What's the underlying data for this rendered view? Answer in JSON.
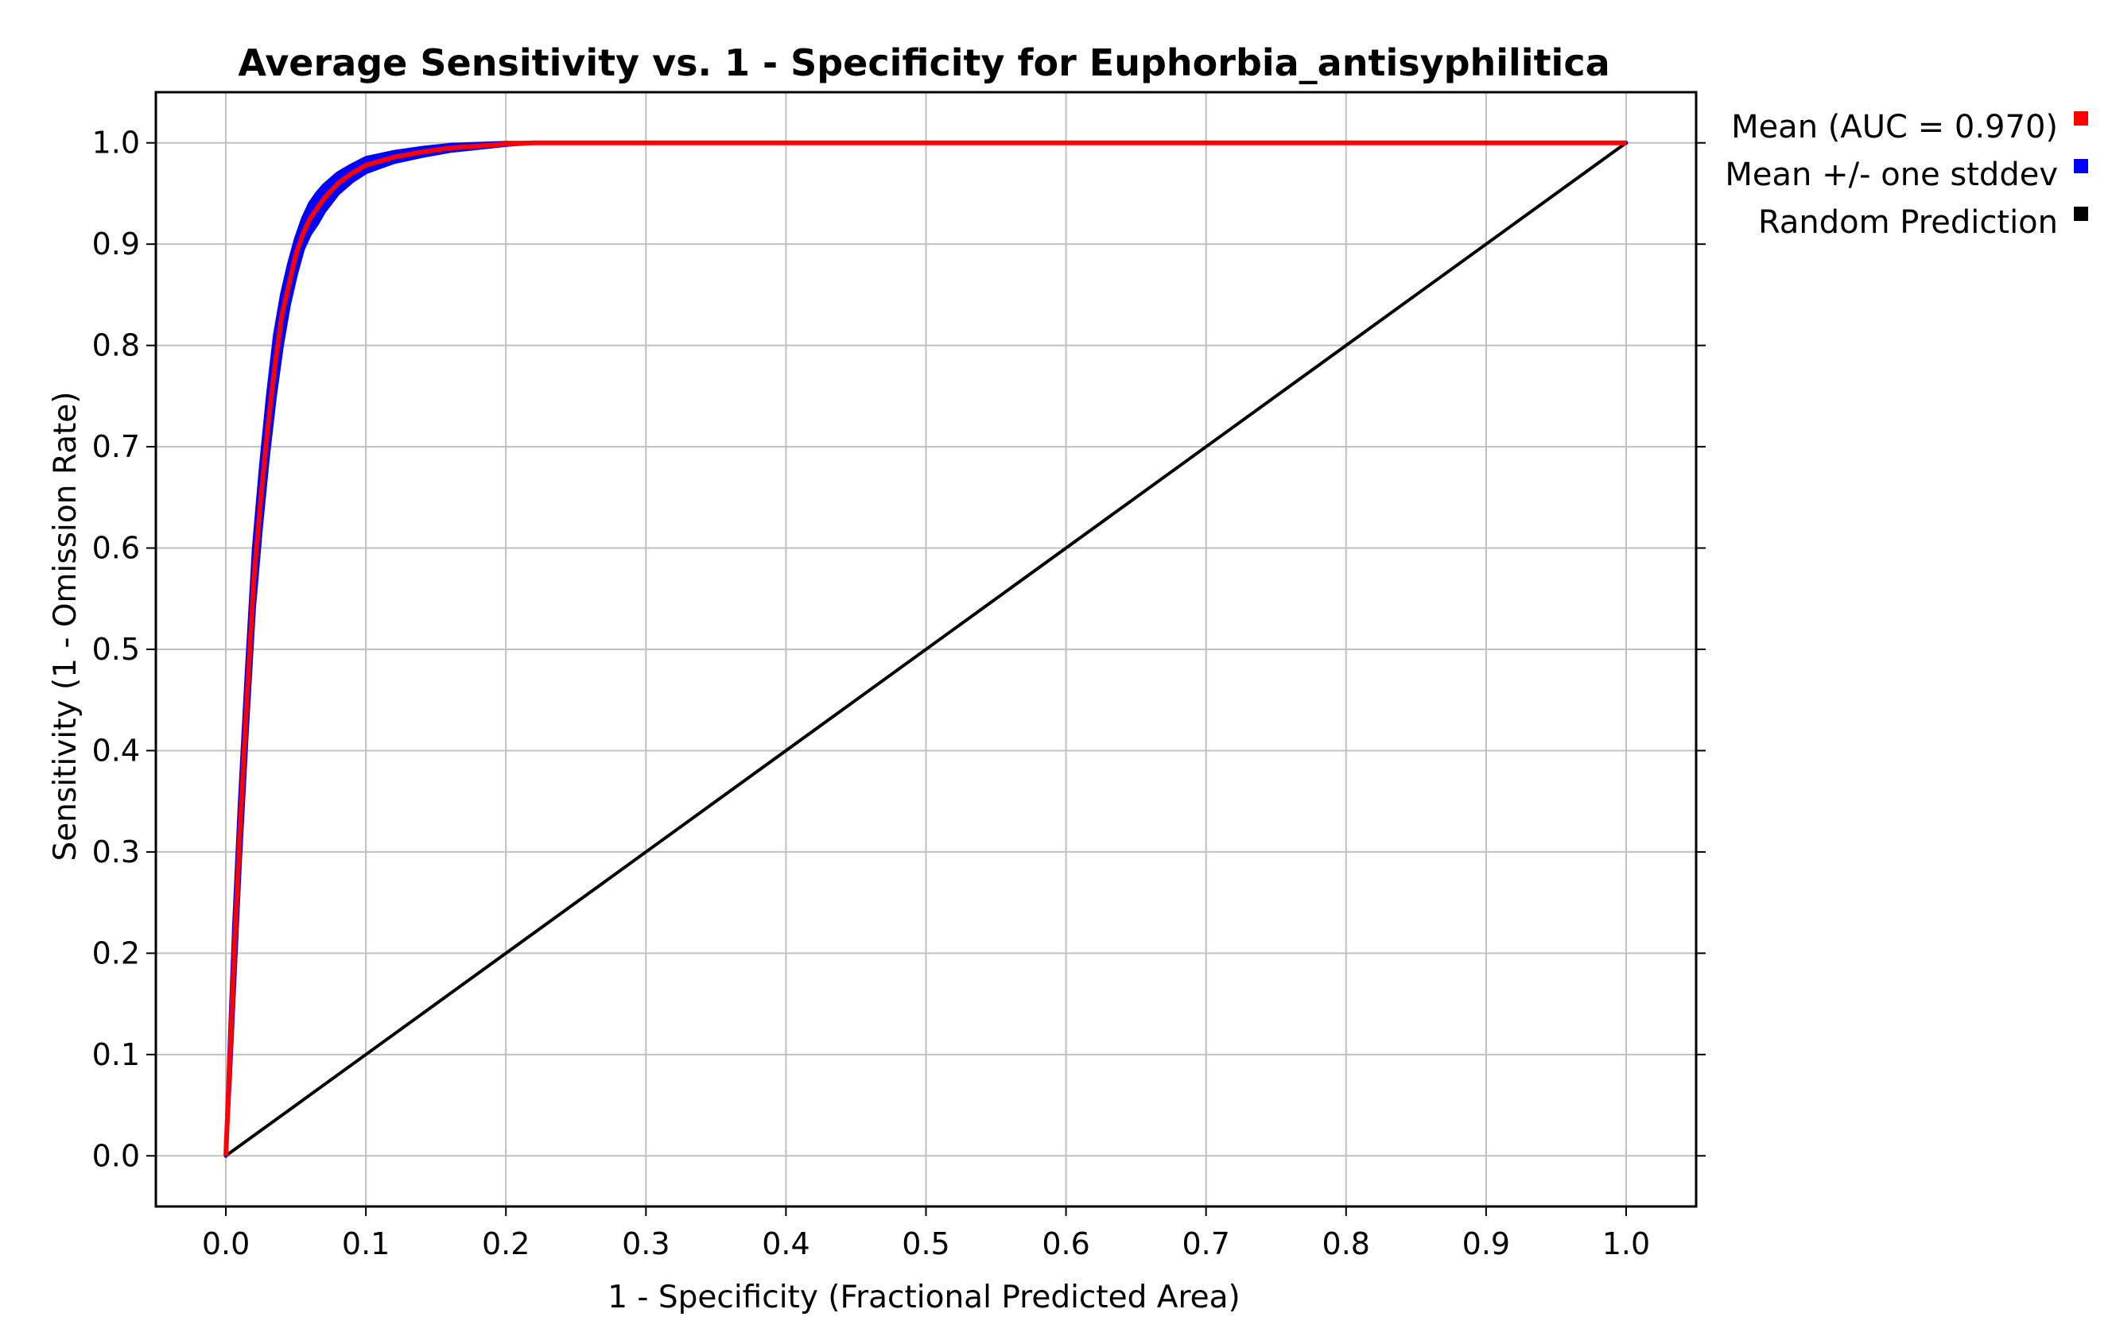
{
  "chart_data": {
    "type": "line",
    "title": "Average Sensitivity vs. 1 - Specificity for Euphorbia_antisyphilitica",
    "xlabel": "1 - Specificity (Fractional Predicted Area)",
    "ylabel": "Sensitivity (1 - Omission Rate)",
    "xlim": [
      -0.05,
      1.05
    ],
    "ylim": [
      -0.05,
      1.05
    ],
    "x_ticks": [
      "0.0",
      "0.1",
      "0.2",
      "0.3",
      "0.4",
      "0.5",
      "0.6",
      "0.7",
      "0.8",
      "0.9",
      "1.0"
    ],
    "y_ticks": [
      "0.0",
      "0.1",
      "0.2",
      "0.3",
      "0.4",
      "0.5",
      "0.6",
      "0.7",
      "0.8",
      "0.9",
      "1.0"
    ],
    "grid": true,
    "legend_position": "right, outside top",
    "series": [
      {
        "name": "Mean (AUC = 0.970)",
        "color": "#ff0000",
        "x": [
          0.0,
          0.003,
          0.006,
          0.01,
          0.015,
          0.02,
          0.025,
          0.03,
          0.035,
          0.04,
          0.045,
          0.05,
          0.055,
          0.06,
          0.065,
          0.07,
          0.08,
          0.09,
          0.1,
          0.12,
          0.14,
          0.16,
          0.18,
          0.2,
          0.22,
          0.25,
          0.3,
          0.4,
          0.5,
          0.6,
          0.7,
          0.8,
          0.9,
          1.0
        ],
        "y": [
          0.0,
          0.1,
          0.2,
          0.32,
          0.45,
          0.57,
          0.65,
          0.72,
          0.78,
          0.83,
          0.86,
          0.89,
          0.91,
          0.925,
          0.935,
          0.945,
          0.96,
          0.97,
          0.978,
          0.986,
          0.991,
          0.995,
          0.997,
          0.999,
          1.0,
          1.0,
          1.0,
          1.0,
          1.0,
          1.0,
          1.0,
          1.0,
          1.0,
          1.0
        ]
      },
      {
        "name": "Mean +/- one stddev",
        "color": "#0000ff",
        "band": {
          "x": [
            0.0,
            0.003,
            0.006,
            0.01,
            0.015,
            0.02,
            0.025,
            0.03,
            0.035,
            0.04,
            0.045,
            0.05,
            0.055,
            0.06,
            0.065,
            0.07,
            0.08,
            0.09,
            0.1,
            0.12,
            0.14,
            0.16,
            0.18,
            0.2,
            0.22,
            1.0
          ],
          "upper": [
            0.0,
            0.12,
            0.23,
            0.35,
            0.48,
            0.6,
            0.68,
            0.75,
            0.81,
            0.85,
            0.88,
            0.905,
            0.925,
            0.94,
            0.95,
            0.958,
            0.97,
            0.978,
            0.985,
            0.991,
            0.995,
            0.998,
            0.999,
            1.0,
            1.0,
            1.0
          ],
          "lower": [
            0.0,
            0.08,
            0.17,
            0.29,
            0.42,
            0.54,
            0.62,
            0.69,
            0.75,
            0.8,
            0.84,
            0.87,
            0.895,
            0.91,
            0.92,
            0.932,
            0.95,
            0.962,
            0.971,
            0.981,
            0.987,
            0.992,
            0.995,
            0.998,
            1.0,
            1.0
          ]
        }
      },
      {
        "name": "Random Prediction",
        "color": "#000000",
        "x": [
          0.0,
          1.0
        ],
        "y": [
          0.0,
          1.0
        ]
      }
    ]
  },
  "colors": {
    "plot_border": "#000000",
    "grid": "#c0c0c0",
    "background": "#ffffff"
  }
}
